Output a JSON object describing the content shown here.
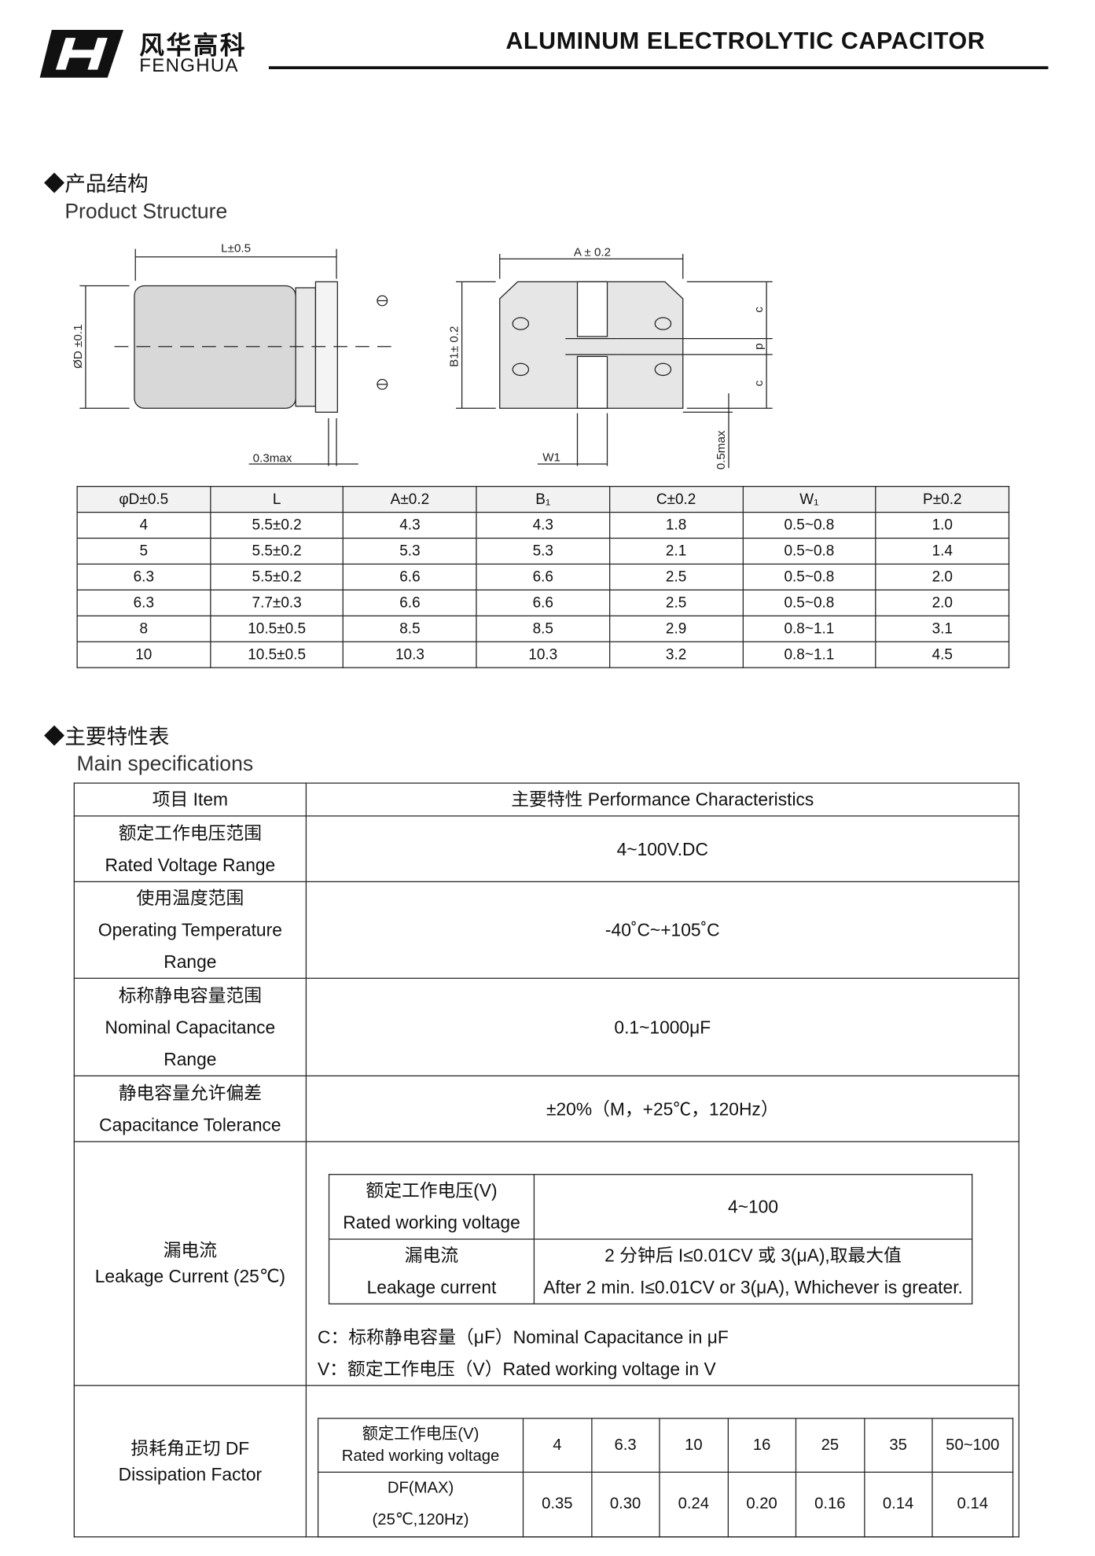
{
  "header": {
    "brand_cn": "风华高科",
    "brand_en": "FENGHUA",
    "title": "ALUMINUM ELECTROLYTIC CAPACITOR"
  },
  "structure": {
    "heading_cn": "◆产品结构",
    "heading_en": "Product Structure",
    "diagram": {
      "length": "L±0.5",
      "diameter": "ØD ±0.1",
      "max_03": "0.3max",
      "width_a": "A ± 0.2",
      "width_b": "B1± 0.2",
      "w1": "W1",
      "max_05": "0.5max",
      "c_top": "c",
      "p": "p",
      "c_bottom": "c"
    },
    "table": {
      "header": [
        "φD±0.5",
        "L",
        "A±0.2",
        "B₁",
        "C±0.2",
        "W₁",
        "P±0.2"
      ],
      "rows": [
        [
          "4",
          "5.5±0.2",
          "4.3",
          "4.3",
          "1.8",
          "0.5~0.8",
          "1.0"
        ],
        [
          "5",
          "5.5±0.2",
          "5.3",
          "5.3",
          "2.1",
          "0.5~0.8",
          "1.4"
        ],
        [
          "6.3",
          "5.5±0.2",
          "6.6",
          "6.6",
          "2.5",
          "0.5~0.8",
          "2.0"
        ],
        [
          "6.3",
          "7.7±0.3",
          "6.6",
          "6.6",
          "2.5",
          "0.5~0.8",
          "2.0"
        ],
        [
          "8",
          "10.5±0.5",
          "8.5",
          "8.5",
          "2.9",
          "0.8~1.1",
          "3.1"
        ],
        [
          "10",
          "10.5±0.5",
          "10.3",
          "10.3",
          "3.2",
          "0.8~1.1",
          "4.5"
        ]
      ]
    }
  },
  "specs": {
    "heading_cn": "◆主要特性表",
    "heading_en": "Main specifications",
    "header": [
      "项目 Item",
      "主要特性 Performance Characteristics"
    ],
    "rows": [
      {
        "item": [
          "额定工作电压范围",
          "Rated Voltage Range"
        ],
        "value": "4~100V.DC"
      },
      {
        "item": [
          "使用温度范围",
          "Operating Temperature",
          "Range"
        ],
        "value": "-40˚C~+105˚C"
      },
      {
        "item": [
          "标称静电容量范围",
          "Nominal Capacitance",
          "Range"
        ],
        "value": "0.1~1000μF"
      },
      {
        "item": [
          "静电容量允许偏差",
          "Capacitance Tolerance"
        ],
        "value": "±20%（M，+25℃，120Hz）"
      }
    ],
    "leakage": {
      "item": [
        "漏电流",
        "Leakage Current (25℃)"
      ],
      "table": [
        [
          [
            "额定工作电压(V)",
            "Rated working voltage"
          ],
          [
            "4~100"
          ]
        ],
        [
          [
            "漏电流",
            "Leakage current"
          ],
          [
            "2 分钟后 I≤0.01CV 或 3(μA),取最大值",
            "After 2 min. I≤0.01CV or 3(μA), Whichever is greater."
          ]
        ]
      ],
      "notes": [
        "C：标称静电容量（μF）Nominal Capacitance in μF",
        "V：额定工作电压（V）Rated working voltage in V"
      ]
    },
    "dissipation": {
      "item": [
        "损耗角正切 DF",
        "Dissipation Factor"
      ],
      "header": [
        [
          "额定工作电压(V)",
          "Rated working voltage"
        ],
        "4",
        "6.3",
        "10",
        "16",
        "25",
        "35",
        "50~100"
      ],
      "row": [
        [
          "DF(MAX)",
          "(25℃,120Hz)"
        ],
        "0.35",
        "0.30",
        "0.24",
        "0.20",
        "0.16",
        "0.14",
        "0.14"
      ]
    }
  }
}
